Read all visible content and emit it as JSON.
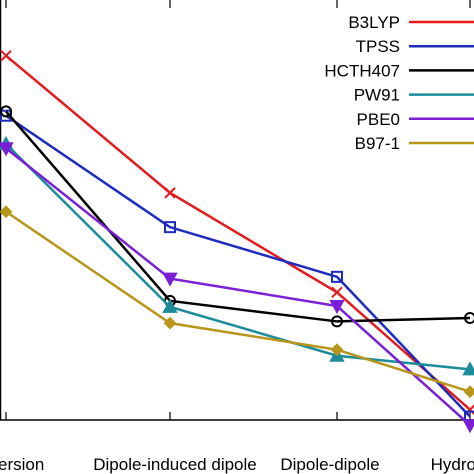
{
  "chart_data": {
    "type": "line",
    "categories": [
      "Dispersion",
      "Dipole-induced dipole",
      "Dipole-dipole",
      "Hydrogen bonding"
    ],
    "category_labels_visible": [
      "ersion",
      "Dipole-induced dipole",
      "Dipole-dipole",
      "Hydro"
    ],
    "series": [
      {
        "name": "B3LYP",
        "color": "#e41a1c",
        "marker": "x",
        "values": [
          4.85,
          3.25,
          2.09,
          0.72
        ]
      },
      {
        "name": "TPSS",
        "color": "#1e2bbf",
        "marker": "square",
        "values": [
          4.15,
          2.85,
          2.27,
          0.64
        ]
      },
      {
        "name": "HCTH407",
        "color": "#000000",
        "marker": "circle",
        "values": [
          4.2,
          1.99,
          1.75,
          1.79
        ]
      },
      {
        "name": "PW91",
        "color": "#1c8c9a",
        "marker": "triangle",
        "values": [
          3.82,
          1.92,
          1.35,
          1.19
        ]
      },
      {
        "name": "PBE0",
        "color": "#7b1fd6",
        "marker": "tri-down",
        "values": [
          3.77,
          2.25,
          1.93,
          0.54
        ]
      },
      {
        "name": "B97-1",
        "color": "#b8961c",
        "marker": "diamond",
        "values": [
          3.03,
          1.73,
          1.42,
          0.93
        ]
      }
    ],
    "ylim": [
      0.6,
      5.5
    ],
    "y_ticks_visible": false,
    "grid": false,
    "legend_position": "top-right"
  }
}
